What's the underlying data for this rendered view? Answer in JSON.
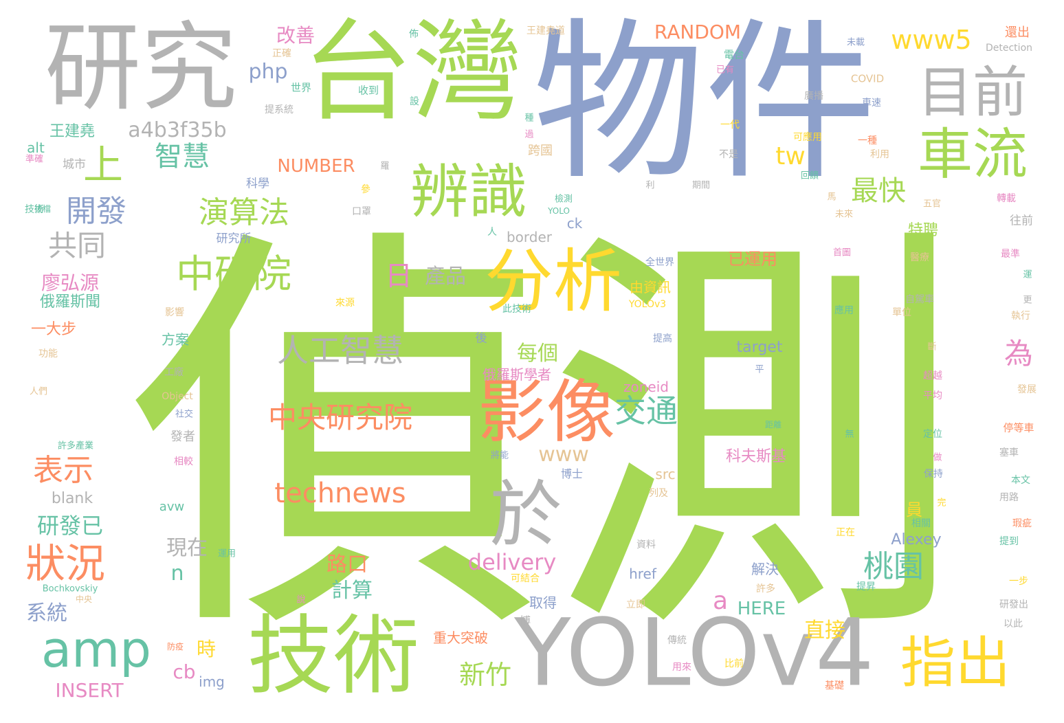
{
  "words": [
    {
      "text": "偵測",
      "color": "#a6d854",
      "vertical": false
    },
    {
      "text": "物件",
      "color": "#8da0cb",
      "vertical": false
    },
    {
      "text": "台灣",
      "color": "#a6d854",
      "vertical": false
    },
    {
      "text": "研究",
      "color": "#b3b3b3",
      "vertical": false
    },
    {
      "text": "技術",
      "color": "#a6d854",
      "vertical": false
    },
    {
      "text": "YOLOv4",
      "color": "#b3b3b3",
      "vertical": false
    },
    {
      "text": "影像",
      "color": "#fc8d62",
      "vertical": false
    },
    {
      "text": "於",
      "color": "#b3b3b3",
      "vertical": false
    },
    {
      "text": "分析",
      "color": "#ffd92f",
      "vertical": false
    },
    {
      "text": "辨識",
      "color": "#a6d854",
      "vertical": false
    },
    {
      "text": "車流",
      "color": "#a6d854",
      "vertical": false
    },
    {
      "text": "目前",
      "color": "#b3b3b3",
      "vertical": false
    },
    {
      "text": "指出",
      "color": "#ffd92f",
      "vertical": false
    },
    {
      "text": "amp",
      "color": "#66c2a5",
      "vertical": false
    },
    {
      "text": "狀況",
      "color": "#fc8d62",
      "vertical": false
    },
    {
      "text": "上",
      "color": "#a6d854",
      "vertical": false
    },
    {
      "text": "中研院",
      "color": "#a6d854",
      "vertical": false
    },
    {
      "text": "人工智慧",
      "color": "#b3b3b3",
      "vertical": false
    },
    {
      "text": "中央研究院",
      "color": "#fc8d62",
      "vertical": false
    },
    {
      "text": "technews",
      "color": "#fc8d62",
      "vertical": false
    },
    {
      "text": "演算法",
      "color": "#a6d854",
      "vertical": false
    },
    {
      "text": "智慧",
      "color": "#66c2a5",
      "vertical": false
    },
    {
      "text": "開發",
      "color": "#8da0cb",
      "vertical": false
    },
    {
      "text": "共同",
      "color": "#b3b3b3",
      "vertical": false
    },
    {
      "text": "表示",
      "color": "#fc8d62",
      "vertical": false
    },
    {
      "text": "交通",
      "color": "#66c2a5",
      "vertical": false
    },
    {
      "text": "桃園",
      "color": "#66c2a5",
      "vertical": false
    },
    {
      "text": "最快",
      "color": "#a6d854",
      "vertical": false
    },
    {
      "text": "www5",
      "color": "#ffd92f",
      "vertical": false
    },
    {
      "text": "a4b3f35b",
      "color": "#b3b3b3",
      "vertical": false
    },
    {
      "text": "php",
      "color": "#8da0cb",
      "vertical": false
    },
    {
      "text": "tw",
      "color": "#ffd92f",
      "vertical": false
    },
    {
      "text": "日",
      "color": "#e78ac3",
      "vertical": false
    },
    {
      "text": "為",
      "color": "#e78ac3",
      "vertical": false
    },
    {
      "text": "delivery",
      "color": "#e78ac3",
      "vertical": false
    },
    {
      "text": "www",
      "color": "#e5c494",
      "vertical": false
    },
    {
      "text": "a",
      "color": "#e78ac3",
      "vertical": false
    },
    {
      "text": "新竹",
      "color": "#a6d854",
      "vertical": false
    },
    {
      "text": "直接",
      "color": "#ffd92f",
      "vertical": false
    },
    {
      "text": "產品",
      "color": "#b3b3b3",
      "vertical": false
    },
    {
      "text": "每個",
      "color": "#a6d854",
      "vertical": false
    },
    {
      "text": "RANDOM",
      "color": "#fc8d62",
      "vertical": false
    },
    {
      "text": "NUMBER",
      "color": "#fc8d62",
      "vertical": false
    },
    {
      "text": "改善",
      "color": "#e78ac3",
      "vertical": false
    },
    {
      "text": "研發已",
      "color": "#66c2a5",
      "vertical": false
    },
    {
      "text": "廖弘源",
      "color": "#e78ac3",
      "vertical": false
    },
    {
      "text": "路口",
      "color": "#fc8d62",
      "vertical": false
    },
    {
      "text": "計算",
      "color": "#66c2a5",
      "vertical": false
    },
    {
      "text": "現在",
      "color": "#b3b3b3",
      "vertical": false
    },
    {
      "text": "系統",
      "color": "#8da0cb",
      "vertical": false
    },
    {
      "text": "n",
      "color": "#66c2a5",
      "vertical": false
    },
    {
      "text": "時",
      "color": "#ffd92f",
      "vertical": false
    },
    {
      "text": "cb",
      "color": "#e78ac3",
      "vertical": false
    },
    {
      "text": "img",
      "color": "#8da0cb",
      "vertical": false
    },
    {
      "text": "INSERT",
      "color": "#e78ac3",
      "vertical": false
    },
    {
      "text": "HERE",
      "color": "#66c2a5",
      "vertical": false
    },
    {
      "text": "已運用",
      "color": "#fc8d62",
      "vertical": false
    },
    {
      "text": "科夫斯基",
      "color": "#e78ac3",
      "vertical": false
    },
    {
      "text": "Alexey",
      "color": "#8da0cb",
      "vertical": false
    },
    {
      "text": "target",
      "color": "#8da0cb",
      "vertical": false
    },
    {
      "text": "特聘",
      "color": "#a6d854",
      "vertical": false
    },
    {
      "text": "員",
      "color": "#ffd92f",
      "vertical": false
    },
    {
      "text": "王建堯",
      "color": "#66c2a5",
      "vertical": false
    },
    {
      "text": "俄羅斯學者",
      "color": "#e78ac3",
      "vertical": false
    },
    {
      "text": "俄羅斯聞",
      "color": "#66c2a5",
      "vertical": false
    },
    {
      "text": "一大步",
      "color": "#fc8d62",
      "vertical": false
    },
    {
      "text": "border",
      "color": "#b3b3b3",
      "vertical": false
    },
    {
      "text": "blank",
      "color": "#b3b3b3",
      "vertical": false
    },
    {
      "text": "zoneid",
      "color": "#e78ac3",
      "vertical": false
    },
    {
      "text": "重大突破",
      "color": "#fc8d62",
      "vertical": false
    },
    {
      "text": "由資訊",
      "color": "#ffd92f",
      "vertical": false
    },
    {
      "text": "方案",
      "color": "#66c2a5",
      "vertical": false
    },
    {
      "text": "解決",
      "color": "#8da0cb",
      "vertical": false
    },
    {
      "text": "取得",
      "color": "#8da0cb",
      "vertical": false
    },
    {
      "text": "href",
      "color": "#8da0cb",
      "vertical": false
    },
    {
      "text": "src",
      "color": "#e5c494",
      "vertical": false
    },
    {
      "text": "avw",
      "color": "#66c2a5",
      "vertical": false
    },
    {
      "text": "alt",
      "color": "#66c2a5",
      "vertical": false
    },
    {
      "text": "ck",
      "color": "#8da0cb",
      "vertical": false
    },
    {
      "text": "城市",
      "color": "#b3b3b3",
      "vertical": false
    },
    {
      "text": "科學",
      "color": "#8da0cb",
      "vertical": false
    },
    {
      "text": "研究所",
      "color": "#8da0cb",
      "vertical": false
    },
    {
      "text": "跨國",
      "color": "#e5c494",
      "vertical": false
    },
    {
      "text": "往前",
      "color": "#b3b3b3",
      "vertical": false
    },
    {
      "text": "Detection",
      "color": "#b3b3b3",
      "vertical": false
    },
    {
      "text": "COVID",
      "color": "#e5c494",
      "vertical": false
    },
    {
      "text": "YOLOv3",
      "color": "#ffd92f",
      "vertical": false
    },
    {
      "text": "Bochkovskiy",
      "color": "#66c2a5",
      "vertical": false
    },
    {
      "text": "Object",
      "color": "#e5c494",
      "vertical": false
    },
    {
      "text": "世界",
      "color": "#66c2a5",
      "vertical": false
    },
    {
      "text": "收到",
      "color": "#66c2a5",
      "vertical": false
    },
    {
      "text": "提系統",
      "color": "#b3b3b3",
      "vertical": false
    },
    {
      "text": "王建堯道",
      "color": "#e5c494",
      "vertical": false
    },
    {
      "text": "電台",
      "color": "#66c2a5",
      "vertical": false
    },
    {
      "text": "已有",
      "color": "#e78ac3",
      "vertical": false
    },
    {
      "text": "未載",
      "color": "#8da0cb",
      "vertical": false
    },
    {
      "text": "還出",
      "color": "#fc8d62",
      "vertical": false
    },
    {
      "text": "正確",
      "color": "#e5c494",
      "vertical": false
    },
    {
      "text": "佈",
      "color": "#66c2a5",
      "vertical": false
    },
    {
      "text": "設",
      "color": "#66c2a5",
      "vertical": false
    },
    {
      "text": "廣播",
      "color": "#b3b3b3",
      "vertical": false
    },
    {
      "text": "車速",
      "color": "#8da0cb",
      "vertical": false
    },
    {
      "text": "可應用",
      "color": "#ffd92f",
      "vertical": false
    },
    {
      "text": "一代",
      "color": "#ffd92f",
      "vertical": false
    },
    {
      "text": "一種",
      "color": "#fc8d62",
      "vertical": false
    },
    {
      "text": "利用",
      "color": "#e5c494",
      "vertical": false
    },
    {
      "text": "不是",
      "color": "#b3b3b3",
      "vertical": false
    },
    {
      "text": "回饋",
      "color": "#66c2a5",
      "vertical": false
    },
    {
      "text": "期間",
      "color": "#b3b3b3",
      "vertical": false
    },
    {
      "text": "五官",
      "color": "#e5c494",
      "vertical": false
    },
    {
      "text": "轉載",
      "color": "#e78ac3",
      "vertical": false
    },
    {
      "text": "未來",
      "color": "#e5c494",
      "vertical": false
    },
    {
      "text": "首圖",
      "color": "#e78ac3",
      "vertical": false
    },
    {
      "text": "醫療",
      "color": "#e5c494",
      "vertical": false
    },
    {
      "text": "最準",
      "color": "#e78ac3",
      "vertical": false
    },
    {
      "text": "應用",
      "color": "#66c2a5",
      "vertical": false
    },
    {
      "text": "單位",
      "color": "#e5c494",
      "vertical": false
    },
    {
      "text": "自駕車",
      "color": "#b3b3b3",
      "vertical": false
    },
    {
      "text": "執行",
      "color": "#e5c494",
      "vertical": false
    },
    {
      "text": "超越",
      "color": "#e78ac3",
      "vertical": false
    },
    {
      "text": "發展",
      "color": "#e5c494",
      "vertical": false
    },
    {
      "text": "平均",
      "color": "#e78ac3",
      "vertical": false
    },
    {
      "text": "定位",
      "color": "#66c2a5",
      "vertical": false
    },
    {
      "text": "停等車",
      "color": "#fc8d62",
      "vertical": false
    },
    {
      "text": "塞車",
      "color": "#b3b3b3",
      "vertical": false
    },
    {
      "text": "保持",
      "color": "#8da0cb",
      "vertical": false
    },
    {
      "text": "本文",
      "color": "#66c2a5",
      "vertical": false
    },
    {
      "text": "用路",
      "color": "#b3b3b3",
      "vertical": false
    },
    {
      "text": "相關",
      "color": "#66c2a5",
      "vertical": false
    },
    {
      "text": "瑕疵",
      "color": "#fc8d62",
      "vertical": false
    },
    {
      "text": "提到",
      "color": "#66c2a5",
      "vertical": false
    },
    {
      "text": "一步",
      "color": "#ffd92f",
      "vertical": false
    },
    {
      "text": "研發出",
      "color": "#b3b3b3",
      "vertical": false
    },
    {
      "text": "以此",
      "color": "#b3b3b3",
      "vertical": false
    },
    {
      "text": "基礎",
      "color": "#fc8d62",
      "vertical": false
    },
    {
      "text": "正在",
      "color": "#ffd92f",
      "vertical": false
    },
    {
      "text": "提昇",
      "color": "#66c2a5",
      "vertical": false
    },
    {
      "text": "比前",
      "color": "#ffd92f",
      "vertical": false
    },
    {
      "text": "用來",
      "color": "#e78ac3",
      "vertical": false
    },
    {
      "text": "傳統",
      "color": "#b3b3b3",
      "vertical": false
    },
    {
      "text": "許多",
      "color": "#e5c494",
      "vertical": false
    },
    {
      "text": "立即",
      "color": "#e5c494",
      "vertical": false
    },
    {
      "text": "可結合",
      "color": "#ffd92f",
      "vertical": false
    },
    {
      "text": "資料",
      "color": "#b3b3b3",
      "vertical": false
    },
    {
      "text": "列及",
      "color": "#e5c494",
      "vertical": false
    },
    {
      "text": "博士",
      "color": "#8da0cb",
      "vertical": false
    },
    {
      "text": "博",
      "color": "#b3b3b3",
      "vertical": false
    },
    {
      "text": "將能",
      "color": "#8da0cb",
      "vertical": false
    },
    {
      "text": "發者",
      "color": "#b3b3b3",
      "vertical": false
    },
    {
      "text": "相較",
      "color": "#e78ac3",
      "vertical": false
    },
    {
      "text": "社交",
      "color": "#8da0cb",
      "vertical": false
    },
    {
      "text": "許多產業",
      "color": "#66c2a5",
      "vertical": false
    },
    {
      "text": "人們",
      "color": "#e5c494",
      "vertical": false
    },
    {
      "text": "工廠",
      "color": "#b3b3b3",
      "vertical": false
    },
    {
      "text": "功能",
      "color": "#e5c494",
      "vertical": false
    },
    {
      "text": "影響",
      "color": "#e5c494",
      "vertical": false
    },
    {
      "text": "此技術",
      "color": "#66c2a5",
      "vertical": false
    },
    {
      "text": "後",
      "color": "#8da0cb",
      "vertical": false
    },
    {
      "text": "提高",
      "color": "#8da0cb",
      "vertical": false
    },
    {
      "text": "全世界",
      "color": "#8da0cb",
      "vertical": false
    },
    {
      "text": "來源",
      "color": "#ffd92f",
      "vertical": false
    },
    {
      "text": "人",
      "color": "#66c2a5",
      "vertical": false
    },
    {
      "text": "口罩",
      "color": "#b3b3b3",
      "vertical": false
    },
    {
      "text": "參",
      "color": "#ffd92f",
      "vertical": false
    },
    {
      "text": "利",
      "color": "#b3b3b3",
      "vertical": false
    },
    {
      "text": "馬",
      "color": "#e5c494",
      "vertical": false
    },
    {
      "text": "技術",
      "color": "#66c2a5",
      "vertical": false
    },
    {
      "text": "準確",
      "color": "#e78ac3",
      "vertical": false
    },
    {
      "text": "更",
      "color": "#b3b3b3",
      "vertical": false
    },
    {
      "text": "運",
      "color": "#66c2a5",
      "vertical": false
    },
    {
      "text": "斷",
      "color": "#e5c494",
      "vertical": false
    },
    {
      "text": "做",
      "color": "#e78ac3",
      "vertical": false
    },
    {
      "text": "完",
      "color": "#ffd92f",
      "vertical": false
    },
    {
      "text": "平",
      "color": "#8da0cb",
      "vertical": false
    },
    {
      "text": "無",
      "color": "#66c2a5",
      "vertical": false
    },
    {
      "text": "距離",
      "color": "#66c2a5",
      "vertical": false
    },
    {
      "text": "中央",
      "color": "#e5c494",
      "vertical": false
    },
    {
      "text": "說",
      "color": "#e78ac3",
      "vertical": false
    },
    {
      "text": "運用",
      "color": "#66c2a5",
      "vertical": false
    },
    {
      "text": "防疫",
      "color": "#fc8d62",
      "vertical": false
    },
    {
      "text": "檢測",
      "color": "#66c2a5",
      "vertical": false
    },
    {
      "text": "YOLO",
      "color": "#66c2a5",
      "vertical": false
    },
    {
      "text": "羅",
      "color": "#b3b3b3",
      "vertical": false
    },
    {
      "text": "種",
      "color": "#66c2a5",
      "vertical": false
    },
    {
      "text": "過",
      "color": "#e78ac3",
      "vertical": false
    },
    {
      "text": "技檔",
      "color": "#66c2a5",
      "vertical": false
    }
  ]
}
